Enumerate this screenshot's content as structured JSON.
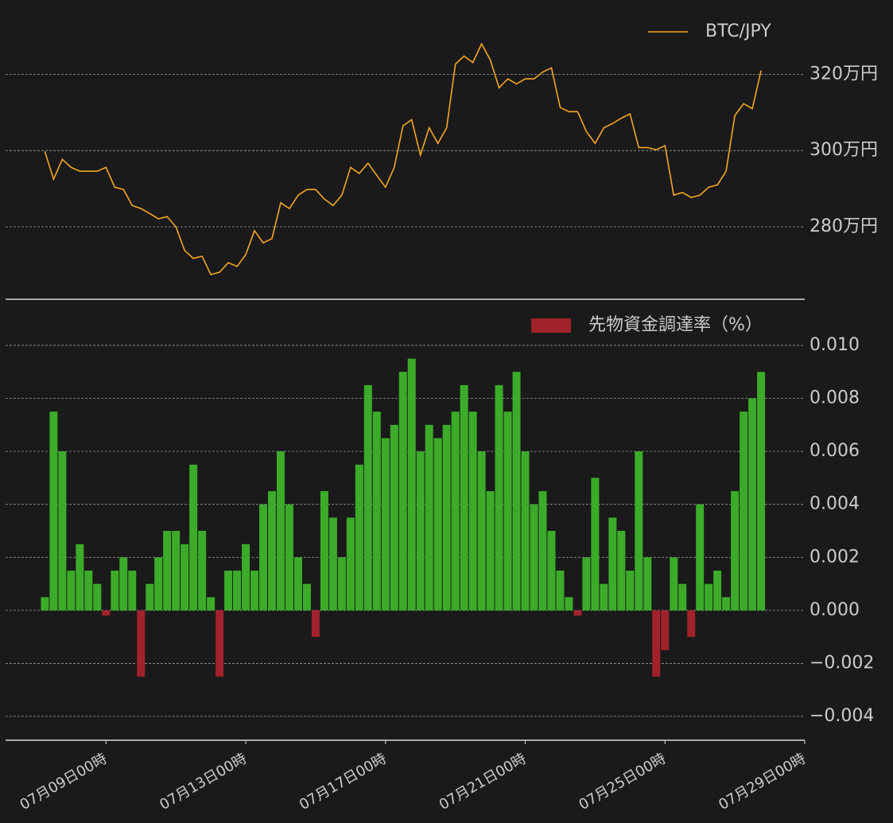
{
  "chart_data": [
    {
      "type": "line",
      "series": [
        {
          "name": "BTC/JPY",
          "color": "#f5a623",
          "values": [
            2998000,
            2925000,
            2977000,
            2956000,
            2946000,
            2946000,
            2946000,
            2956000,
            2904000,
            2898000,
            2856000,
            2848000,
            2835000,
            2821000,
            2827000,
            2800000,
            2738000,
            2717000,
            2723000,
            2675000,
            2681000,
            2706000,
            2696000,
            2727000,
            2790000,
            2758000,
            2769000,
            2863000,
            2848000,
            2883000,
            2898000,
            2898000,
            2873000,
            2856000,
            2883000,
            2956000,
            2940000,
            2967000,
            2935000,
            2904000,
            2956000,
            3065000,
            3081000,
            2988000,
            3060000,
            3019000,
            3060000,
            3227000,
            3248000,
            3231000,
            3280000,
            3238000,
            3165000,
            3188000,
            3175000,
            3188000,
            3188000,
            3206000,
            3217000,
            3113000,
            3102000,
            3102000,
            3050000,
            3019000,
            3060000,
            3071000,
            3085000,
            3096000,
            3008000,
            3008000,
            3002000,
            3013000,
            2883000,
            2890000,
            2877000,
            2883000,
            2904000,
            2910000,
            2946000,
            3092000,
            3123000,
            3110000,
            3210000
          ]
        }
      ],
      "x": [
        "07-07 06:00",
        "07-07 12:00",
        "07-07 18:00",
        "07-08 00:00",
        "07-08 06:00",
        "07-08 12:00",
        "07-08 18:00",
        "07-09 00:00",
        "07-09 06:00",
        "07-09 12:00",
        "07-09 18:00",
        "07-10 00:00",
        "07-10 06:00",
        "07-10 12:00",
        "07-10 18:00",
        "07-11 00:00",
        "07-11 06:00",
        "07-11 12:00",
        "07-11 18:00",
        "07-12 00:00",
        "07-12 06:00",
        "07-12 12:00",
        "07-12 18:00",
        "07-13 00:00",
        "07-13 06:00",
        "07-13 12:00",
        "07-13 18:00",
        "07-14 00:00",
        "07-14 06:00",
        "07-14 12:00",
        "07-14 18:00",
        "07-15 00:00",
        "07-15 06:00",
        "07-15 12:00",
        "07-15 18:00",
        "07-16 00:00",
        "07-16 06:00",
        "07-16 12:00",
        "07-16 18:00",
        "07-17 00:00",
        "07-17 06:00",
        "07-17 12:00",
        "07-17 18:00",
        "07-18 00:00",
        "07-18 06:00",
        "07-18 12:00",
        "07-18 18:00",
        "07-19 00:00",
        "07-19 06:00",
        "07-19 12:00",
        "07-19 18:00",
        "07-20 00:00",
        "07-20 06:00",
        "07-20 12:00",
        "07-20 18:00",
        "07-21 00:00",
        "07-21 06:00",
        "07-21 12:00",
        "07-21 18:00",
        "07-22 00:00",
        "07-22 06:00",
        "07-22 12:00",
        "07-22 18:00",
        "07-23 00:00",
        "07-23 06:00",
        "07-23 12:00",
        "07-23 18:00",
        "07-24 00:00",
        "07-24 06:00",
        "07-24 12:00",
        "07-24 18:00",
        "07-25 00:00",
        "07-25 06:00",
        "07-25 12:00",
        "07-25 18:00",
        "07-26 00:00",
        "07-26 06:00",
        "07-26 12:00",
        "07-26 18:00",
        "07-27 00:00",
        "07-27 06:00",
        "07-27 12:00",
        "07-27 18:00"
      ],
      "xlim": [
        "07-06 03:00",
        "07-29 00:00"
      ],
      "ylim": [
        2610000,
        3395000
      ],
      "yticks": [
        {
          "value": 2800000,
          "label": "280万円"
        },
        {
          "value": 3000000,
          "label": "300万円"
        },
        {
          "value": 3200000,
          "label": "320万円"
        }
      ],
      "grid": true,
      "legend": "upper right"
    },
    {
      "type": "bar",
      "series": [
        {
          "name": "先物資金調達率（%）",
          "color": "#a0232b",
          "positive_color": "#3cab2a",
          "values": [
            0.0005,
            0.0075,
            0.006,
            0.0015,
            0.0025,
            0.0015,
            0.001,
            -0.0002,
            0.0015,
            0.002,
            0.0015,
            -0.0025,
            0.001,
            0.002,
            0.003,
            0.003,
            0.0025,
            0.0055,
            0.003,
            0.0005,
            -0.0025,
            0.0015,
            0.0015,
            0.0025,
            0.0015,
            0.004,
            0.0045,
            0.006,
            0.004,
            0.002,
            0.001,
            -0.001,
            0.0045,
            0.0035,
            0.002,
            0.0035,
            0.0055,
            0.0085,
            0.0075,
            0.0065,
            0.007,
            0.009,
            0.0095,
            0.006,
            0.007,
            0.0065,
            0.007,
            0.0075,
            0.0085,
            0.0075,
            0.006,
            0.0045,
            0.0085,
            0.0075,
            0.009,
            0.006,
            0.004,
            0.0045,
            0.003,
            0.0015,
            0.0005,
            -0.0002,
            0.002,
            0.005,
            0.001,
            0.0035,
            0.003,
            0.0015,
            0.006,
            0.002,
            -0.0025,
            -0.0015,
            0.002,
            0.001,
            -0.001,
            0.004,
            0.001,
            0.0015,
            0.0005,
            0.0045,
            0.0075,
            0.008,
            0.009
          ]
        }
      ],
      "x": [
        "07-07 06:00",
        "07-07 12:00",
        "07-07 18:00",
        "07-08 00:00",
        "07-08 06:00",
        "07-08 12:00",
        "07-08 18:00",
        "07-09 00:00",
        "07-09 06:00",
        "07-09 12:00",
        "07-09 18:00",
        "07-10 00:00",
        "07-10 06:00",
        "07-10 12:00",
        "07-10 18:00",
        "07-11 00:00",
        "07-11 06:00",
        "07-11 12:00",
        "07-11 18:00",
        "07-12 00:00",
        "07-12 06:00",
        "07-12 12:00",
        "07-12 18:00",
        "07-13 00:00",
        "07-13 06:00",
        "07-13 12:00",
        "07-13 18:00",
        "07-14 00:00",
        "07-14 06:00",
        "07-14 12:00",
        "07-14 18:00",
        "07-15 00:00",
        "07-15 06:00",
        "07-15 12:00",
        "07-15 18:00",
        "07-16 00:00",
        "07-16 06:00",
        "07-16 12:00",
        "07-16 18:00",
        "07-17 00:00",
        "07-17 06:00",
        "07-17 12:00",
        "07-17 18:00",
        "07-18 00:00",
        "07-18 06:00",
        "07-18 12:00",
        "07-18 18:00",
        "07-19 00:00",
        "07-19 06:00",
        "07-19 12:00",
        "07-19 18:00",
        "07-20 00:00",
        "07-20 06:00",
        "07-20 12:00",
        "07-20 18:00",
        "07-21 00:00",
        "07-21 06:00",
        "07-21 12:00",
        "07-21 18:00",
        "07-22 00:00",
        "07-22 06:00",
        "07-22 12:00",
        "07-22 18:00",
        "07-23 00:00",
        "07-23 06:00",
        "07-23 12:00",
        "07-23 18:00",
        "07-24 00:00",
        "07-24 06:00",
        "07-24 12:00",
        "07-24 18:00",
        "07-25 00:00",
        "07-25 06:00",
        "07-25 12:00",
        "07-25 18:00",
        "07-26 00:00",
        "07-26 06:00",
        "07-26 12:00",
        "07-26 18:00",
        "07-27 00:00",
        "07-27 06:00",
        "07-27 12:00",
        "07-27 18:00"
      ],
      "xlim": [
        "07-06 03:00",
        "07-29 00:00"
      ],
      "xticks": [
        {
          "value": "07-09 00:00",
          "label": "07月09日00時"
        },
        {
          "value": "07-13 00:00",
          "label": "07月13日00時"
        },
        {
          "value": "07-17 00:00",
          "label": "07月17日00時"
        },
        {
          "value": "07-21 00:00",
          "label": "07月21日00時"
        },
        {
          "value": "07-25 00:00",
          "label": "07月25日00時"
        },
        {
          "value": "07-29 00:00",
          "label": "07月29日00時"
        }
      ],
      "ylim": [
        -0.0049,
        0.01156
      ],
      "yticks": [
        {
          "value": -0.004,
          "label": "−0.004"
        },
        {
          "value": -0.002,
          "label": "−0.002"
        },
        {
          "value": 0,
          "label": "0.000"
        },
        {
          "value": 0.002,
          "label": "0.002"
        },
        {
          "value": 0.004,
          "label": "0.004"
        },
        {
          "value": 0.006,
          "label": "0.006"
        },
        {
          "value": 0.008,
          "label": "0.008"
        },
        {
          "value": 0.01,
          "label": "0.010"
        }
      ],
      "grid": true,
      "legend": "upper right"
    }
  ]
}
